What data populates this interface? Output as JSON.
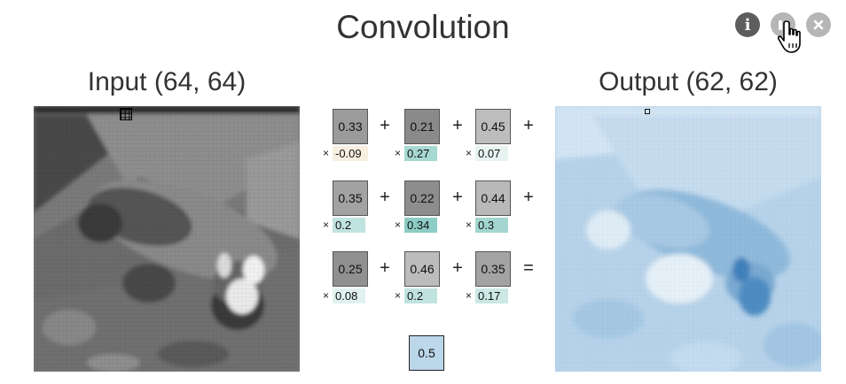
{
  "title": "Convolution",
  "controls": {
    "info_glyph": "i",
    "info_icon": "info-icon",
    "pause_icon": "pause-icon",
    "close_icon": "close-icon"
  },
  "input": {
    "label": "Input (64, 64)"
  },
  "output": {
    "label": "Output (62, 62)"
  },
  "kernel": {
    "rows": [
      [
        {
          "value": "0.33",
          "weight": "-0.09",
          "cell_color": "#9b9b9b",
          "weight_color": "#f8efe1"
        },
        {
          "value": "0.21",
          "weight": "0.27",
          "cell_color": "#8a8a8a",
          "weight_color": "#a7d8d2"
        },
        {
          "value": "0.45",
          "weight": "0.07",
          "cell_color": "#bdbdbd",
          "weight_color": "#e6f3f1"
        }
      ],
      [
        {
          "value": "0.35",
          "weight": "0.2",
          "cell_color": "#a2a2a2",
          "weight_color": "#c1e3df"
        },
        {
          "value": "0.22",
          "weight": "0.34",
          "cell_color": "#8d8d8d",
          "weight_color": "#8cccc5"
        },
        {
          "value": "0.44",
          "weight": "0.3",
          "cell_color": "#b9b9b9",
          "weight_color": "#a3d6d0"
        }
      ],
      [
        {
          "value": "0.25",
          "weight": "0.08",
          "cell_color": "#909090",
          "weight_color": "#e1f1ef"
        },
        {
          "value": "0.46",
          "weight": "0.2",
          "cell_color": "#bcbcbc",
          "weight_color": "#c1e3df"
        },
        {
          "value": "0.35",
          "weight": "0.17",
          "cell_color": "#a3a3a3",
          "weight_color": "#cbe8e4"
        }
      ]
    ],
    "plus": "+",
    "times": "×",
    "equals": "=",
    "bias": {
      "value": "0.5",
      "color": "#bcd6ea"
    }
  }
}
